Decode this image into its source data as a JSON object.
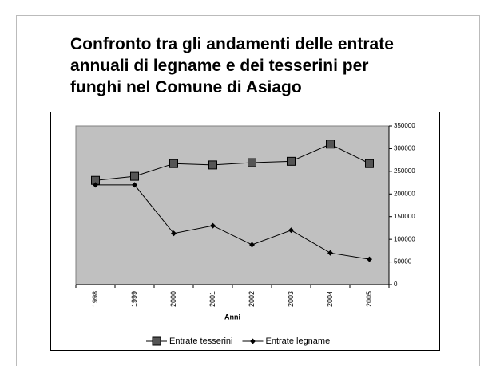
{
  "chart_data": {
    "type": "line",
    "title": [
      "Confronto tra gli andamenti delle entrate",
      "annuali di legname e dei tesserini per",
      "funghi nel Comune di Asiago"
    ],
    "xlabel": "Anni",
    "categories": [
      "1998",
      "1999",
      "2000",
      "2001",
      "2002",
      "2003",
      "2004",
      "2005"
    ],
    "series": [
      {
        "name": "Entrate tesserini",
        "color": "#000000",
        "marker": "square",
        "values": [
          230000,
          239000,
          267000,
          264000,
          269000,
          272000,
          310000,
          267000
        ]
      },
      {
        "name": "Entrate legname",
        "color": "#000000",
        "marker": "diamond",
        "values": [
          220000,
          220000,
          113000,
          130000,
          88000,
          120000,
          70000,
          56000
        ]
      }
    ],
    "ylim": [
      0,
      350000
    ],
    "yticks": [
      0,
      50000,
      100000,
      150000,
      200000,
      250000,
      300000,
      350000
    ],
    "y_axis_side": "right",
    "plot_background": "#c0c0c0",
    "grid": false,
    "legend": "bottom"
  }
}
